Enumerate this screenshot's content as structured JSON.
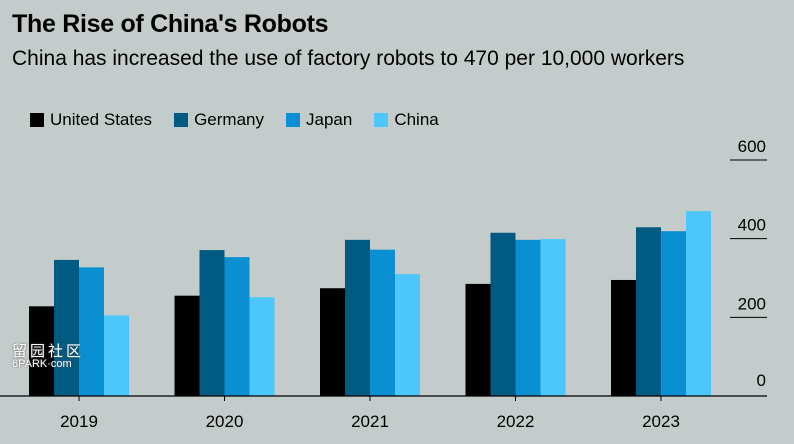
{
  "title": "The Rise of China's Robots",
  "subtitle": "China has increased the use of factory robots to 470 per 10,000 workers",
  "watermark": {
    "line1": "留园社区",
    "line2": "6PARK·com"
  },
  "chart_data": {
    "type": "bar",
    "categories": [
      "2019",
      "2020",
      "2021",
      "2022",
      "2023"
    ],
    "series": [
      {
        "name": "United States",
        "color": "#000000",
        "values": [
          228,
          255,
          274,
          285,
          295
        ]
      },
      {
        "name": "Germany",
        "color": "#005a82",
        "values": [
          346,
          371,
          397,
          415,
          429
        ]
      },
      {
        "name": "Japan",
        "color": "#0a8fd2",
        "values": [
          327,
          353,
          372,
          397,
          419
        ]
      },
      {
        "name": "China",
        "color": "#4dc6fb",
        "values": [
          205,
          251,
          310,
          399,
          470
        ]
      }
    ],
    "yticks": [
      "0",
      "200",
      "400",
      "600"
    ],
    "ylim": [
      0,
      600
    ],
    "legend": "top-left",
    "grid": false
  }
}
